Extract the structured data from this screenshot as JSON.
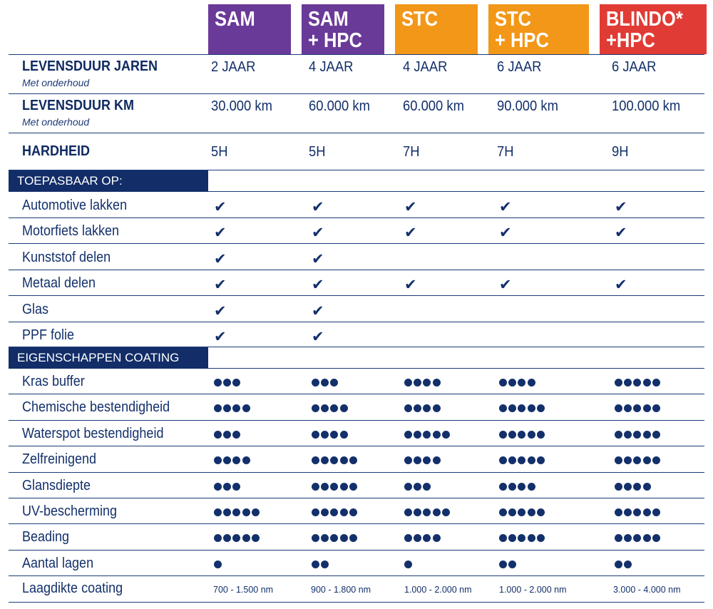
{
  "colors": {
    "navy": "#122d68",
    "text": "#13306b",
    "sam": "#6a3a98",
    "stc": "#f29718",
    "blindo": "#e13b35"
  },
  "products": [
    {
      "line1": "SAM",
      "line2": "",
      "color": "#6a3a98"
    },
    {
      "line1": "SAM",
      "line2": "+ HPC",
      "color": "#6a3a98"
    },
    {
      "line1": "STC",
      "line2": "",
      "color": "#f29718"
    },
    {
      "line1": "STC",
      "line2": "+ HPC",
      "color": "#f29718"
    },
    {
      "line1": "BLINDO*",
      "line2": "+HPC",
      "color": "#e13b35"
    }
  ],
  "lifetime_years": {
    "label": "LEVENSDUUR JAREN",
    "sublabel": "Met onderhoud",
    "values": [
      "2 JAAR",
      "4 JAAR",
      "4 JAAR",
      "6 JAAR",
      "6 JAAR"
    ]
  },
  "lifetime_km": {
    "label": "LEVENSDUUR KM",
    "sublabel": "Met onderhoud",
    "values": [
      "30.000 km",
      "60.000 km",
      "60.000 km",
      "90.000 km",
      "100.000 km"
    ]
  },
  "hardness": {
    "label": "HARDHEID",
    "values": [
      "5H",
      "5H",
      "7H",
      "7H",
      "9H"
    ]
  },
  "applicable": {
    "title": "TOEPASBAAR OP:",
    "check_glyph": "✔",
    "rows": [
      {
        "label": "Automotive lakken",
        "checks": [
          true,
          true,
          true,
          true,
          true
        ]
      },
      {
        "label": "Motorfiets lakken",
        "checks": [
          true,
          true,
          true,
          true,
          true
        ]
      },
      {
        "label": "Kunststof delen",
        "checks": [
          true,
          true,
          false,
          false,
          false
        ]
      },
      {
        "label": "Metaal delen",
        "checks": [
          true,
          true,
          true,
          true,
          true
        ]
      },
      {
        "label": "Glas",
        "checks": [
          true,
          true,
          false,
          false,
          false
        ]
      },
      {
        "label": "PPF folie",
        "checks": [
          true,
          true,
          false,
          false,
          false
        ]
      }
    ]
  },
  "properties": {
    "title": "EIGENSCHAPPEN COATING",
    "rows": [
      {
        "label": "Kras buffer",
        "ratings": [
          3,
          3,
          4,
          4,
          5
        ]
      },
      {
        "label": "Chemische bestendigheid",
        "ratings": [
          4,
          4,
          4,
          5,
          5
        ]
      },
      {
        "label": "Waterspot bestendigheid",
        "ratings": [
          3,
          4,
          5,
          5,
          5
        ]
      },
      {
        "label": "Zelfreinigend",
        "ratings": [
          4,
          5,
          4,
          5,
          5
        ]
      },
      {
        "label": "Glansdiepte",
        "ratings": [
          3,
          5,
          3,
          4,
          4
        ]
      },
      {
        "label": "UV-bescherming",
        "ratings": [
          5,
          5,
          5,
          5,
          5
        ]
      },
      {
        "label": "Beading",
        "ratings": [
          5,
          5,
          4,
          5,
          5
        ]
      },
      {
        "label": "Aantal lagen",
        "ratings": [
          1,
          2,
          1,
          2,
          2
        ]
      }
    ]
  },
  "thickness": {
    "label": "Laagdikte coating",
    "values": [
      "700 - 1.500 nm",
      "900 - 1.800 nm",
      "1.000 - 2.000 nm",
      "1.000 - 2.000 nm",
      "3.000 - 4.000 nm"
    ]
  }
}
